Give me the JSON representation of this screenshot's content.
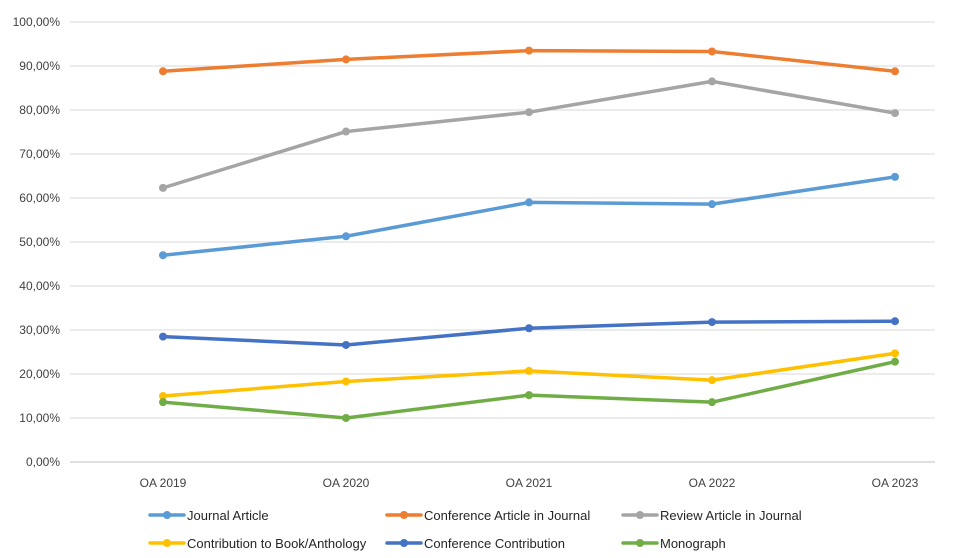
{
  "chart_data": {
    "type": "line",
    "categories": [
      "OA 2019",
      "OA 2020",
      "OA 2021",
      "OA 2022",
      "OA 2023"
    ],
    "ylim": [
      0,
      100
    ],
    "ytick_values": [
      0,
      10,
      20,
      30,
      40,
      50,
      60,
      70,
      80,
      90,
      100
    ],
    "ytick_labels": [
      "0,00%",
      "10,00%",
      "20,00%",
      "30,00%",
      "40,00%",
      "50,00%",
      "60,00%",
      "70,00%",
      "80,00%",
      "90,00%",
      "100,00%"
    ],
    "grid": true,
    "legend_position": "bottom",
    "series": [
      {
        "name": "Journal Article",
        "color": "#5B9BD5",
        "values": [
          47.0,
          51.3,
          59.0,
          58.6,
          64.8
        ]
      },
      {
        "name": "Conference Article in Journal",
        "color": "#ED7D31",
        "values": [
          88.8,
          91.5,
          93.5,
          93.3,
          88.8
        ]
      },
      {
        "name": "Review Article in Journal",
        "color": "#A5A5A5",
        "values": [
          62.3,
          75.1,
          79.5,
          86.5,
          79.3
        ]
      },
      {
        "name": "Contribution to Book/Anthology",
        "color": "#FFC000",
        "values": [
          15.0,
          18.3,
          20.7,
          18.6,
          24.7
        ]
      },
      {
        "name": "Conference Contribution",
        "color": "#4472C4",
        "values": [
          28.5,
          26.6,
          30.4,
          31.8,
          32.0
        ]
      },
      {
        "name": "Monograph",
        "color": "#70AD47",
        "values": [
          13.6,
          10.0,
          15.2,
          13.6,
          22.8
        ]
      }
    ]
  }
}
